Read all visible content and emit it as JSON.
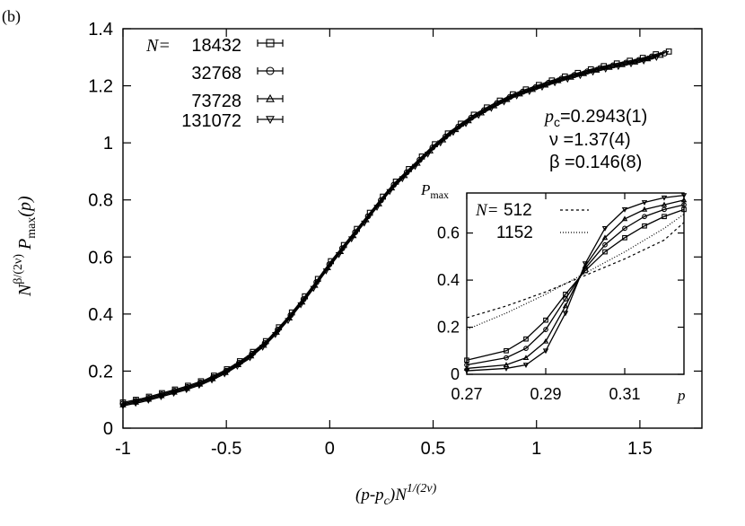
{
  "panel_label": "(b)",
  "chart_data": {
    "type": "line",
    "main": {
      "x_label_parts": [
        "(p-p",
        "c",
        ")N",
        "1/(2ν)"
      ],
      "y_label_parts": [
        "N",
        "β/(2ν)",
        " P",
        "max",
        "(p)"
      ],
      "xlim": [
        -1,
        1.8
      ],
      "ylim": [
        0,
        1.4
      ],
      "x_ticks": [
        -1,
        -0.5,
        0,
        0.5,
        1,
        1.5
      ],
      "x_tick_labels": [
        "-1",
        "-0.5",
        "0",
        "0.5",
        "1",
        "1.5"
      ],
      "y_ticks": [
        0,
        0.2,
        0.4,
        0.6,
        0.8,
        1,
        1.2,
        1.4
      ],
      "y_tick_labels": [
        "0",
        "0.2",
        "0.4",
        "0.6",
        "0.8",
        "1",
        "1.2",
        "1.4"
      ],
      "legend_prefix": "N=",
      "series": [
        {
          "name": "18432",
          "marker": "square",
          "x_max": 1.64
        },
        {
          "name": "32768",
          "marker": "circle",
          "x_max": 1.62
        },
        {
          "name": "73728",
          "marker": "triangle-up",
          "x_max": 1.6
        },
        {
          "name": "131072",
          "marker": "triangle-down",
          "x_max": 1.58
        }
      ],
      "curve": {
        "x": [
          -1.0,
          -0.9,
          -0.8,
          -0.7,
          -0.6,
          -0.5,
          -0.4,
          -0.3,
          -0.2,
          -0.1,
          0.0,
          0.1,
          0.2,
          0.3,
          0.4,
          0.5,
          0.6,
          0.7,
          0.8,
          0.9,
          1.0,
          1.1,
          1.2,
          1.3,
          1.4,
          1.5,
          1.6,
          1.64
        ],
        "y": [
          0.09,
          0.105,
          0.125,
          0.145,
          0.17,
          0.205,
          0.25,
          0.31,
          0.39,
          0.48,
          0.58,
          0.67,
          0.76,
          0.85,
          0.92,
          0.99,
          1.05,
          1.1,
          1.14,
          1.175,
          1.2,
          1.225,
          1.245,
          1.265,
          1.28,
          1.295,
          1.315,
          1.32
        ]
      },
      "annotations": {
        "pc_label": "p",
        "pc_sub": "c",
        "pc_value": "=0.2943(1)",
        "nu": "ν =1.37(4)",
        "beta": "β =0.146(8)"
      }
    },
    "inset": {
      "xlim": [
        0.27,
        0.325
      ],
      "ylim": [
        0,
        0.77
      ],
      "x_ticks": [
        0.27,
        0.29,
        0.31
      ],
      "x_tick_labels": [
        "0.27",
        "0.29",
        "0.31"
      ],
      "y_ticks": [
        0,
        0.2,
        0.4,
        0.6
      ],
      "y_tick_labels": [
        "0",
        "0.2",
        "0.4",
        "0.6"
      ],
      "xlabel": "p",
      "ylabel_parts": [
        "P",
        "max"
      ],
      "legend_prefix": "N=",
      "series": [
        {
          "name": "512",
          "style": "dashed",
          "x": [
            0.27,
            0.28,
            0.29,
            0.3,
            0.31,
            0.32,
            0.325
          ],
          "y": [
            0.24,
            0.29,
            0.35,
            0.42,
            0.49,
            0.57,
            0.645
          ]
        },
        {
          "name": "1152",
          "style": "dotted",
          "x": [
            0.27,
            0.28,
            0.29,
            0.3,
            0.31,
            0.32,
            0.325
          ],
          "y": [
            0.19,
            0.26,
            0.34,
            0.43,
            0.52,
            0.62,
            0.68
          ]
        }
      ],
      "marked_curves": [
        {
          "x": [
            0.27,
            0.28,
            0.285,
            0.29,
            0.295,
            0.3,
            0.305,
            0.31,
            0.315,
            0.32,
            0.325
          ],
          "y": [
            0.06,
            0.1,
            0.15,
            0.23,
            0.34,
            0.44,
            0.52,
            0.58,
            0.63,
            0.67,
            0.7
          ]
        },
        {
          "x": [
            0.27,
            0.28,
            0.285,
            0.29,
            0.295,
            0.3,
            0.305,
            0.31,
            0.315,
            0.32,
            0.325
          ],
          "y": [
            0.04,
            0.07,
            0.11,
            0.19,
            0.32,
            0.45,
            0.55,
            0.62,
            0.67,
            0.7,
            0.72
          ]
        },
        {
          "x": [
            0.27,
            0.28,
            0.285,
            0.29,
            0.295,
            0.3,
            0.305,
            0.31,
            0.315,
            0.32,
            0.325
          ],
          "y": [
            0.025,
            0.04,
            0.07,
            0.14,
            0.29,
            0.46,
            0.58,
            0.66,
            0.7,
            0.72,
            0.74
          ]
        },
        {
          "x": [
            0.27,
            0.28,
            0.285,
            0.29,
            0.295,
            0.3,
            0.305,
            0.31,
            0.315,
            0.32,
            0.325
          ],
          "y": [
            0.015,
            0.025,
            0.04,
            0.1,
            0.26,
            0.47,
            0.62,
            0.7,
            0.73,
            0.75,
            0.76
          ]
        }
      ]
    }
  }
}
